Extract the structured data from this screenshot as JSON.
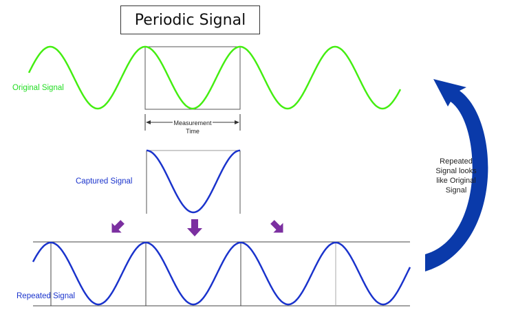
{
  "title": "Periodic Signal",
  "labels": {
    "original": "Original Signal",
    "captured": "Captured Signal",
    "repeated": "Repeated Signal"
  },
  "measurement": {
    "line1": "Measurement",
    "line2": "Time"
  },
  "note_lines": [
    "Repeated",
    "Signal looks",
    "like Original",
    "Signal"
  ],
  "colors": {
    "original": "#44ee11",
    "signal_blue": "#1a33cc",
    "arrow_purple": "#7b2fa0",
    "curved_arrow": "#0a3aaa"
  }
}
